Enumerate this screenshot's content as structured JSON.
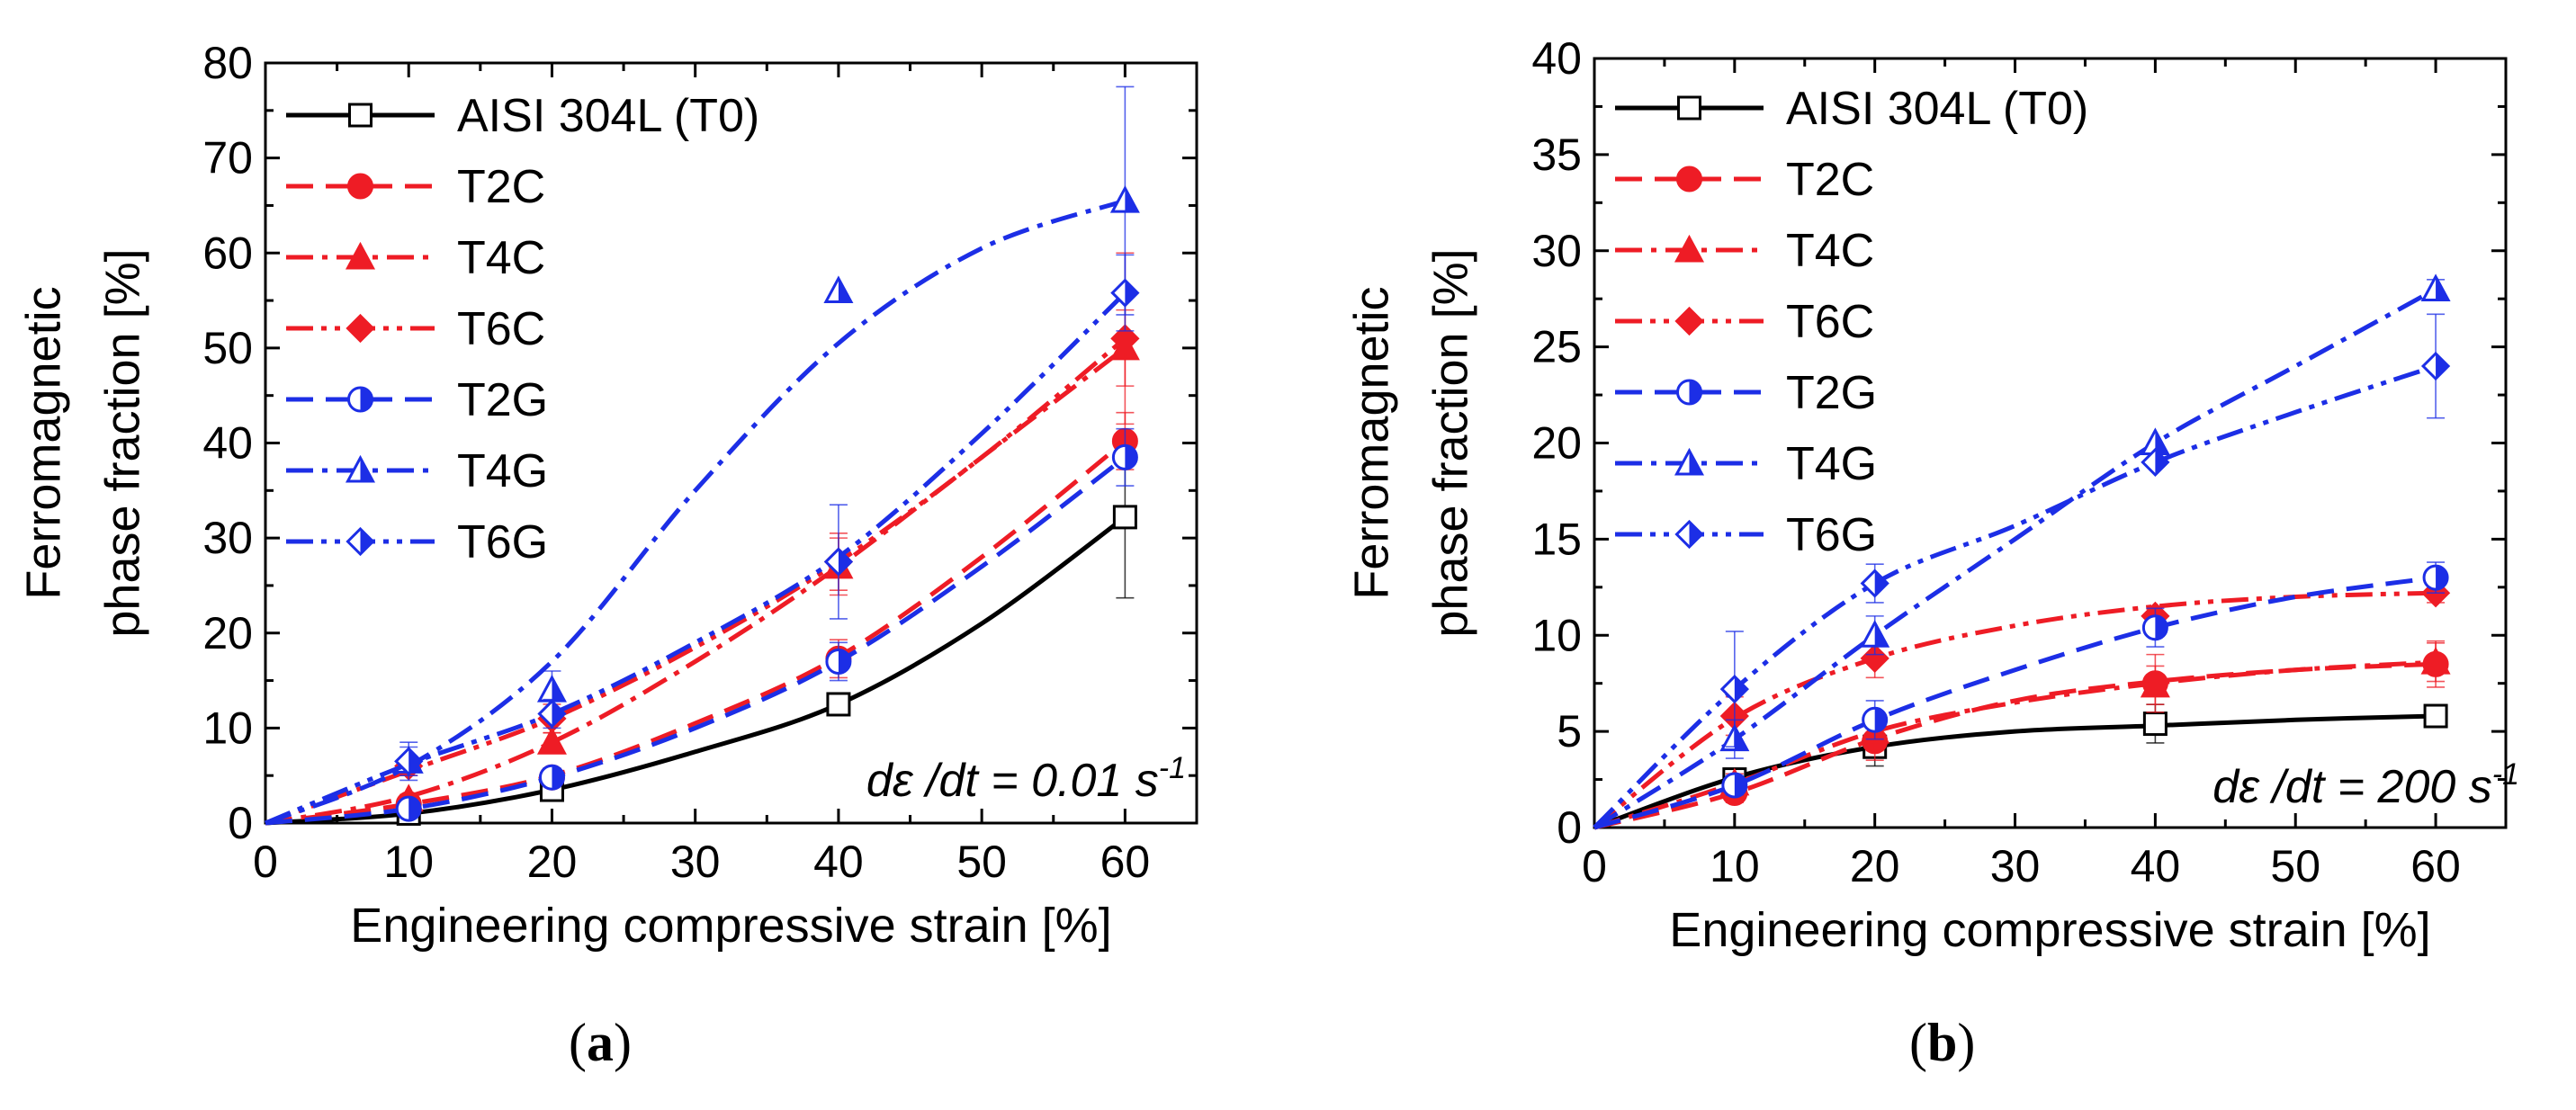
{
  "chart_data": [
    {
      "panel": "a",
      "type": "line",
      "annotation": {
        "prefix": "dε /dt = 0.01 s",
        "sup": "-1"
      },
      "xlabel": "Engineering compressive strain [%]",
      "ylabel": [
        "Ferromagnetic",
        "phase fraction [%]"
      ],
      "xlim": [
        0,
        65
      ],
      "ylim": [
        0,
        80
      ],
      "xticks": [
        0,
        10,
        20,
        30,
        40,
        50,
        60
      ],
      "yticks": [
        0,
        10,
        20,
        30,
        40,
        50,
        60,
        70,
        80
      ],
      "grid": false,
      "legend_position": "top-left",
      "series": [
        {
          "name": "AISI 304L (T0)",
          "color": "#000000",
          "dash": "solid",
          "marker": "square-open",
          "x": [
            0,
            10,
            20,
            40,
            60
          ],
          "y": [
            0,
            1,
            3.5,
            12.5,
            32.2
          ],
          "err": [
            0,
            0,
            0,
            0,
            8.5
          ],
          "curve": [
            [
              0,
              0
            ],
            [
              10,
              1.0
            ],
            [
              20,
              3.5
            ],
            [
              30,
              7.5
            ],
            [
              40,
              12.5
            ],
            [
              50,
              21
            ],
            [
              60,
              32.2
            ]
          ]
        },
        {
          "name": "T2C",
          "color": "#ee1c25",
          "dash": "dash",
          "marker": "circle",
          "x": [
            0,
            10,
            20,
            40,
            60
          ],
          "y": [
            0,
            2,
            4.8,
            17.3,
            40.2
          ],
          "err": [
            0,
            0.5,
            0.8,
            2,
            3
          ],
          "curve": [
            [
              0,
              0
            ],
            [
              10,
              2
            ],
            [
              20,
              5
            ],
            [
              30,
              10.5
            ],
            [
              40,
              17.5
            ],
            [
              50,
              28
            ],
            [
              60,
              40.2
            ]
          ]
        },
        {
          "name": "T4C",
          "color": "#ee1c25",
          "dash": "dashdot",
          "marker": "triangle",
          "x": [
            0,
            10,
            20,
            40,
            60
          ],
          "y": [
            0,
            2.5,
            8.5,
            27,
            50
          ],
          "err": [
            0,
            0.5,
            1,
            3,
            4
          ],
          "curve": [
            [
              0,
              0
            ],
            [
              10,
              2.8
            ],
            [
              20,
              8.5
            ],
            [
              30,
              17
            ],
            [
              40,
              27
            ],
            [
              50,
              38.5
            ],
            [
              60,
              50
            ]
          ]
        },
        {
          "name": "T6C",
          "color": "#ee1c25",
          "dash": "dashdotdot",
          "marker": "diamond",
          "x": [
            0,
            10,
            20,
            40,
            60
          ],
          "y": [
            0,
            6,
            11,
            27.5,
            51
          ],
          "err": [
            0,
            1,
            1.5,
            3,
            9
          ],
          "curve": [
            [
              0,
              0
            ],
            [
              10,
              5.5
            ],
            [
              20,
              11
            ],
            [
              30,
              18.5
            ],
            [
              40,
              27.5
            ],
            [
              50,
              38.5
            ],
            [
              60,
              51
            ]
          ]
        },
        {
          "name": "T2G",
          "color": "#1c2ee6",
          "dash": "dash",
          "marker": "circle-half",
          "x": [
            0,
            10,
            20,
            40,
            60
          ],
          "y": [
            0,
            1.5,
            4.8,
            17,
            38.5
          ],
          "err": [
            0,
            0.5,
            1,
            2,
            3
          ],
          "curve": [
            [
              0,
              0
            ],
            [
              10,
              1.5
            ],
            [
              20,
              4.8
            ],
            [
              30,
              10
            ],
            [
              40,
              17
            ],
            [
              50,
              27
            ],
            [
              60,
              38.5
            ]
          ]
        },
        {
          "name": "T4G",
          "color": "#1c2ee6",
          "dash": "dashdot",
          "marker": "triangle-half",
          "x": [
            0,
            10,
            20,
            40,
            60
          ],
          "y": [
            0,
            6.5,
            14,
            56,
            65.5
          ],
          "err": [
            0,
            2,
            2,
            0,
            12
          ],
          "curve": [
            [
              0,
              0
            ],
            [
              10,
              6
            ],
            [
              20,
              17
            ],
            [
              30,
              35
            ],
            [
              40,
              50.5
            ],
            [
              50,
              60.5
            ],
            [
              60,
              65.5
            ]
          ]
        },
        {
          "name": "T6G",
          "color": "#1c2ee6",
          "dash": "dashdotdot",
          "marker": "diamond-half",
          "x": [
            0,
            10,
            20,
            40,
            60
          ],
          "y": [
            0,
            6.5,
            11.5,
            27.5,
            55.8
          ],
          "err": [
            0,
            1.5,
            1.5,
            6,
            4
          ],
          "curve": [
            [
              0,
              0
            ],
            [
              10,
              6.2
            ],
            [
              20,
              11.5
            ],
            [
              30,
              19
            ],
            [
              40,
              28
            ],
            [
              50,
              41
            ],
            [
              60,
              55.8
            ]
          ]
        }
      ]
    },
    {
      "panel": "b",
      "type": "line",
      "annotation": {
        "prefix": "dε /dt = 200 s",
        "sup": "-1"
      },
      "xlabel": "Engineering compressive strain [%]",
      "ylabel": [
        "Ferromagnetic",
        "phase fraction [%]"
      ],
      "xlim": [
        0,
        65
      ],
      "ylim": [
        0,
        40
      ],
      "xticks": [
        0,
        10,
        20,
        30,
        40,
        50,
        60
      ],
      "yticks": [
        0,
        5,
        10,
        15,
        20,
        25,
        30,
        35,
        40
      ],
      "grid": false,
      "legend_position": "top-left",
      "series": [
        {
          "name": "AISI 304L (T0)",
          "color": "#000000",
          "dash": "solid",
          "marker": "square-open",
          "x": [
            0,
            10,
            20,
            40,
            60
          ],
          "y": [
            0,
            2.5,
            4.2,
            5.4,
            5.8
          ],
          "err": [
            0,
            0,
            1,
            1,
            0
          ],
          "curve": [
            [
              0,
              0
            ],
            [
              10,
              2.6
            ],
            [
              20,
              4.2
            ],
            [
              30,
              5.0
            ],
            [
              40,
              5.3
            ],
            [
              50,
              5.6
            ],
            [
              60,
              5.8
            ]
          ]
        },
        {
          "name": "T2C",
          "color": "#ee1c25",
          "dash": "dash",
          "marker": "circle",
          "x": [
            0,
            10,
            20,
            40,
            60
          ],
          "y": [
            0,
            1.8,
            4.5,
            7.5,
            8.5
          ],
          "err": [
            0,
            0.5,
            1,
            1.5,
            1.2
          ],
          "curve": [
            [
              0,
              0
            ],
            [
              10,
              1.8
            ],
            [
              20,
              4.6
            ],
            [
              30,
              6.6
            ],
            [
              40,
              7.6
            ],
            [
              50,
              8.2
            ],
            [
              60,
              8.5
            ]
          ]
        },
        {
          "name": "T4C",
          "color": "#ee1c25",
          "dash": "dashdot",
          "marker": "triangle",
          "x": [
            0,
            10,
            20,
            40,
            60
          ],
          "y": [
            0,
            2.3,
            5,
            7.4,
            8.6
          ],
          "err": [
            0,
            0.5,
            1,
            1,
            1
          ],
          "curve": [
            [
              0,
              0
            ],
            [
              10,
              2.3
            ],
            [
              20,
              5
            ],
            [
              30,
              6.5
            ],
            [
              40,
              7.5
            ],
            [
              50,
              8.2
            ],
            [
              60,
              8.6
            ]
          ]
        },
        {
          "name": "T6C",
          "color": "#ee1c25",
          "dash": "dashdotdot",
          "marker": "diamond",
          "x": [
            0,
            10,
            20,
            40,
            60
          ],
          "y": [
            0,
            5.8,
            8.8,
            11,
            12.2
          ],
          "err": [
            0,
            1,
            1,
            0,
            0.5
          ],
          "curve": [
            [
              0,
              0
            ],
            [
              10,
              5.7
            ],
            [
              20,
              8.8
            ],
            [
              30,
              10.5
            ],
            [
              40,
              11.5
            ],
            [
              50,
              12
            ],
            [
              60,
              12.2
            ]
          ]
        },
        {
          "name": "T2G",
          "color": "#1c2ee6",
          "dash": "dash",
          "marker": "circle-half",
          "x": [
            0,
            10,
            20,
            40,
            60
          ],
          "y": [
            0,
            2.2,
            5.6,
            10.4,
            13.0
          ],
          "err": [
            0,
            0.5,
            1,
            1,
            0.8
          ],
          "curve": [
            [
              0,
              0
            ],
            [
              10,
              2.2
            ],
            [
              20,
              5.6
            ],
            [
              30,
              8.2
            ],
            [
              40,
              10.4
            ],
            [
              50,
              12
            ],
            [
              60,
              13
            ]
          ]
        },
        {
          "name": "T4G",
          "color": "#1c2ee6",
          "dash": "dashdot",
          "marker": "triangle-half",
          "x": [
            0,
            10,
            20,
            40,
            60
          ],
          "y": [
            0,
            4.6,
            10,
            20,
            28
          ],
          "err": [
            0,
            1,
            1,
            0,
            0.5
          ],
          "curve": [
            [
              0,
              0
            ],
            [
              10,
              4.6
            ],
            [
              20,
              10
            ],
            [
              30,
              15
            ],
            [
              40,
              20
            ],
            [
              50,
              24
            ],
            [
              60,
              28
            ]
          ]
        },
        {
          "name": "T6G",
          "color": "#1c2ee6",
          "dash": "dashdotdot",
          "marker": "diamond-half",
          "x": [
            0,
            10,
            20,
            40,
            60
          ],
          "y": [
            0,
            7.2,
            12.7,
            19,
            24
          ],
          "err": [
            0,
            3,
            1,
            0,
            2.7
          ],
          "curve": [
            [
              0,
              0
            ],
            [
              10,
              7.2
            ],
            [
              20,
              12.7
            ],
            [
              30,
              15.7
            ],
            [
              40,
              19
            ],
            [
              50,
              21.6
            ],
            [
              60,
              24
            ]
          ]
        }
      ]
    }
  ],
  "captions": {
    "a": "a",
    "b": "b"
  }
}
